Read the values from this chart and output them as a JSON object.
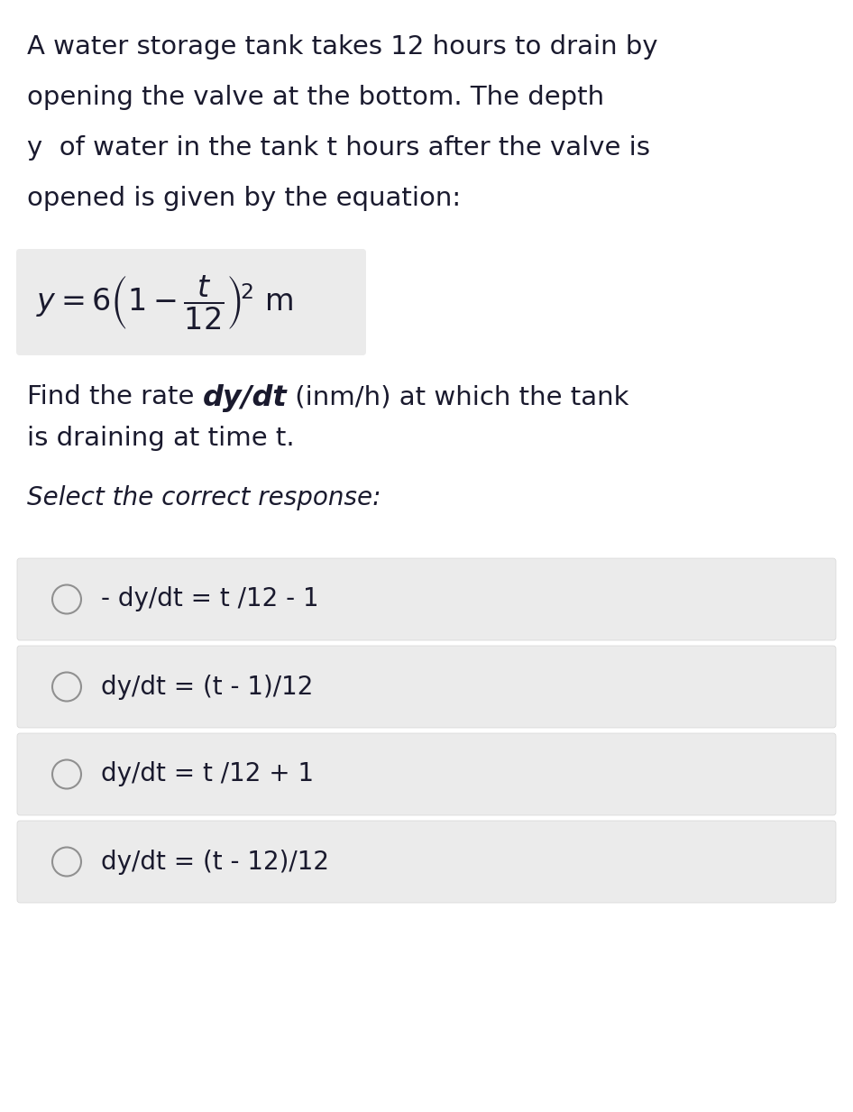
{
  "background_color": "#ffffff",
  "text_color": "#1a1a2e",
  "para_lines": [
    "A water storage tank takes 12 hours to drain by",
    "opening the valve at the bottom. The depth",
    "y  of water in the tank t hours after the valve is",
    "opened is given by the equation:"
  ],
  "equation_latex": "$y = 6\\left(1 - \\dfrac{t}{12}\\right)^{\\!2}\\ \\mathrm{m}$",
  "find_line1_pre": "Find the rate ",
  "find_line1_bold": "dy/dt",
  "find_line1_mid": " (inm/h) at which the tank",
  "find_line2": "is draining at time t.",
  "select_text": "Select the correct response:",
  "options": [
    "- dy/dt = t /12 - 1",
    "dy/dt = (t - 1)/12",
    "dy/dt = t /12 + 1",
    "dy/dt = (t - 12)/12"
  ],
  "option_bg": "#ebebeb",
  "option_border": "#d5d5d5",
  "circle_color": "#909090",
  "font_size_para": 21,
  "font_size_eq": 24,
  "font_size_find_bi": 23,
  "font_size_select": 20,
  "font_size_options": 20
}
